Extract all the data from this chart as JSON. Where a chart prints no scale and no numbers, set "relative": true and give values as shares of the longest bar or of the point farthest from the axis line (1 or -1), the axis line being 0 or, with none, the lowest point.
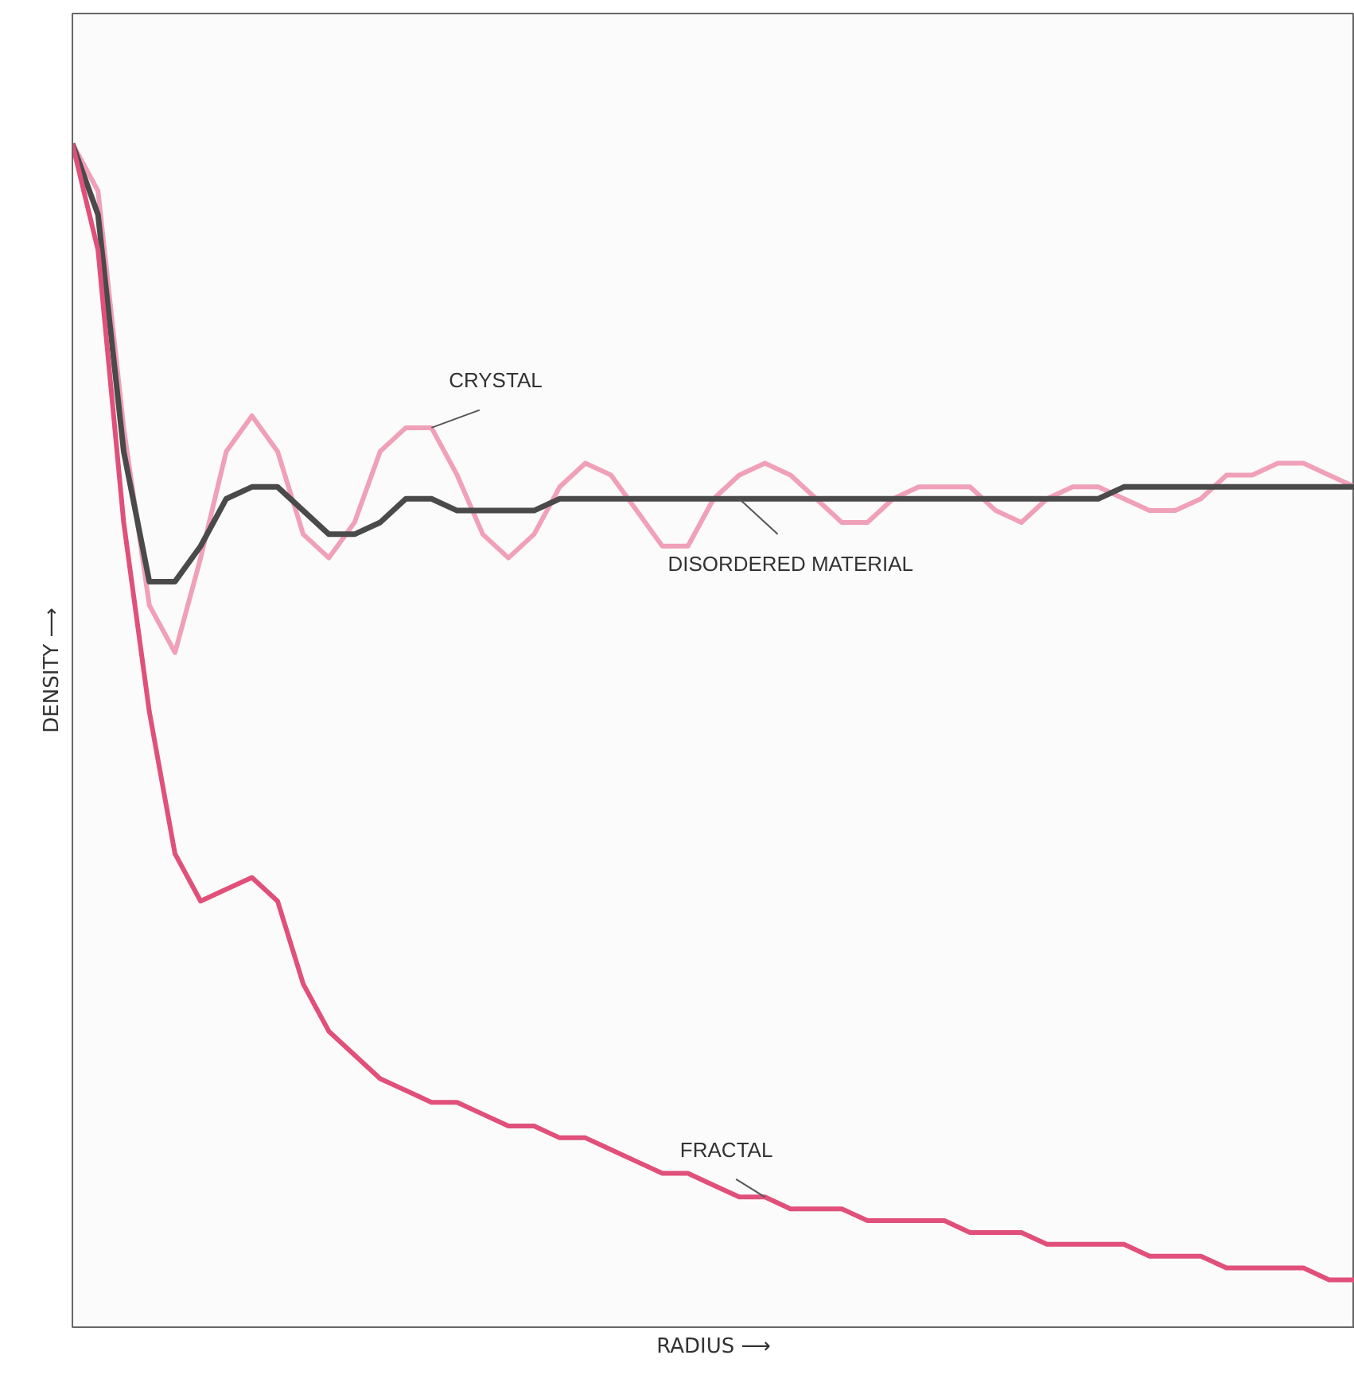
{
  "chart_data": {
    "type": "line",
    "relative": true,
    "xlabel": "RADIUS ⟶",
    "ylabel": "DENSITY ⟶",
    "categories": [
      null,
      null,
      null,
      null,
      null,
      null,
      null,
      null,
      null,
      null,
      null,
      null,
      null,
      null,
      null,
      null,
      null,
      null,
      null,
      null,
      null,
      null,
      null,
      null,
      null,
      null,
      null,
      null,
      null,
      null,
      null,
      null,
      null,
      null,
      null,
      null,
      null,
      null,
      null,
      null,
      null,
      null,
      null,
      null,
      null,
      null,
      null,
      null,
      null,
      null,
      null
    ],
    "series": [
      {
        "name": "CRYSTAL",
        "color": "#f0a0b8",
        "values": [
          1.0,
          0.96,
          0.76,
          0.61,
          0.57,
          0.65,
          0.74,
          0.77,
          0.74,
          0.67,
          0.65,
          0.68,
          0.74,
          0.76,
          0.76,
          0.72,
          0.67,
          0.65,
          0.67,
          0.71,
          0.73,
          0.72,
          0.69,
          0.66,
          0.66,
          0.7,
          0.72,
          0.73,
          0.72,
          0.7,
          0.68,
          0.68,
          0.7,
          0.71,
          0.71,
          0.71,
          0.69,
          0.68,
          0.7,
          0.71,
          0.71,
          0.7,
          0.69,
          0.69,
          0.7,
          0.72,
          0.72,
          0.73,
          0.73,
          0.72,
          0.71
        ]
      },
      {
        "name": "DISORDERED MATERIAL",
        "color": "#4a4a4a",
        "values": [
          1.0,
          0.94,
          0.74,
          0.63,
          0.63,
          0.66,
          0.7,
          0.71,
          0.71,
          0.69,
          0.67,
          0.67,
          0.68,
          0.7,
          0.7,
          0.69,
          0.69,
          0.69,
          0.69,
          0.7,
          0.7,
          0.7,
          0.7,
          0.7,
          0.7,
          0.7,
          0.7,
          0.7,
          0.7,
          0.7,
          0.7,
          0.7,
          0.7,
          0.7,
          0.7,
          0.7,
          0.7,
          0.7,
          0.7,
          0.7,
          0.7,
          0.71,
          0.71,
          0.71,
          0.71,
          0.71,
          0.71,
          0.71,
          0.71,
          0.71,
          0.71
        ]
      },
      {
        "name": "FRACTAL",
        "color": "#e0507a",
        "values": [
          1.0,
          0.91,
          0.68,
          0.52,
          0.4,
          0.36,
          0.37,
          0.38,
          0.36,
          0.29,
          0.25,
          0.23,
          0.21,
          0.2,
          0.19,
          0.19,
          0.18,
          0.17,
          0.17,
          0.16,
          0.16,
          0.15,
          0.14,
          0.13,
          0.13,
          0.12,
          0.11,
          0.11,
          0.1,
          0.1,
          0.1,
          0.09,
          0.09,
          0.09,
          0.09,
          0.08,
          0.08,
          0.08,
          0.07,
          0.07,
          0.07,
          0.07,
          0.06,
          0.06,
          0.06,
          0.05,
          0.05,
          0.05,
          0.05,
          0.04,
          0.04
        ]
      }
    ]
  }
}
